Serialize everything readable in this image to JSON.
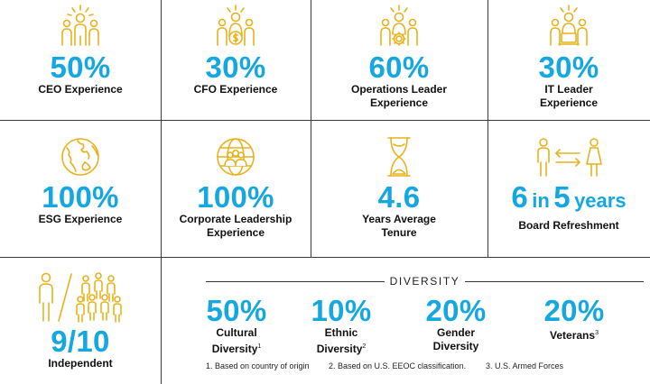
{
  "colors": {
    "accent": "#14a7e0",
    "icon": "#e8b21c",
    "grid": "#3a3a3a"
  },
  "row1": [
    {
      "value": "50%",
      "label": "CEO Experience",
      "icon": "people-leader-icon"
    },
    {
      "value": "30%",
      "label": "CFO Experience",
      "icon": "people-finance-icon"
    },
    {
      "value": "60%",
      "label": "Operations Leader Experience",
      "icon": "people-operations-icon"
    },
    {
      "value": "30%",
      "label": "IT Leader Experience",
      "icon": "people-it-icon"
    }
  ],
  "row2": [
    {
      "value": "100%",
      "label": "ESG Experience",
      "icon": "globe-icon"
    },
    {
      "value": "100%",
      "label": "Corporate Leadership Experience",
      "icon": "globe-people-icon"
    },
    {
      "value": "4.6",
      "label": "Years Average Tenure",
      "icon": "hourglass-icon"
    },
    {
      "value_num1": "6",
      "value_in": "in",
      "value_num2": "5",
      "value_years": "years",
      "label": "Board Refreshment",
      "icon": "board-refresh-icon"
    }
  ],
  "independent": {
    "value": "9/10",
    "label": "Independent",
    "icon": "independent-people-icon"
  },
  "diversity": {
    "heading": "DIVERSITY",
    "items": [
      {
        "value": "50%",
        "label_line1": "Cultural",
        "label_line2": "Diversity",
        "sup": "1"
      },
      {
        "value": "10%",
        "label_line1": "Ethnic",
        "label_line2": "Diversity",
        "sup": "2"
      },
      {
        "value": "20%",
        "label_line1": "Gender",
        "label_line2": "Diversity",
        "sup": ""
      },
      {
        "value": "20%",
        "label_line1": "Veterans",
        "label_line2": "",
        "sup": "3"
      }
    ],
    "footnotes": [
      "1. Based on country of origin",
      "2. Based on U.S. EEOC classification.",
      "3. U.S. Armed Forces"
    ]
  }
}
